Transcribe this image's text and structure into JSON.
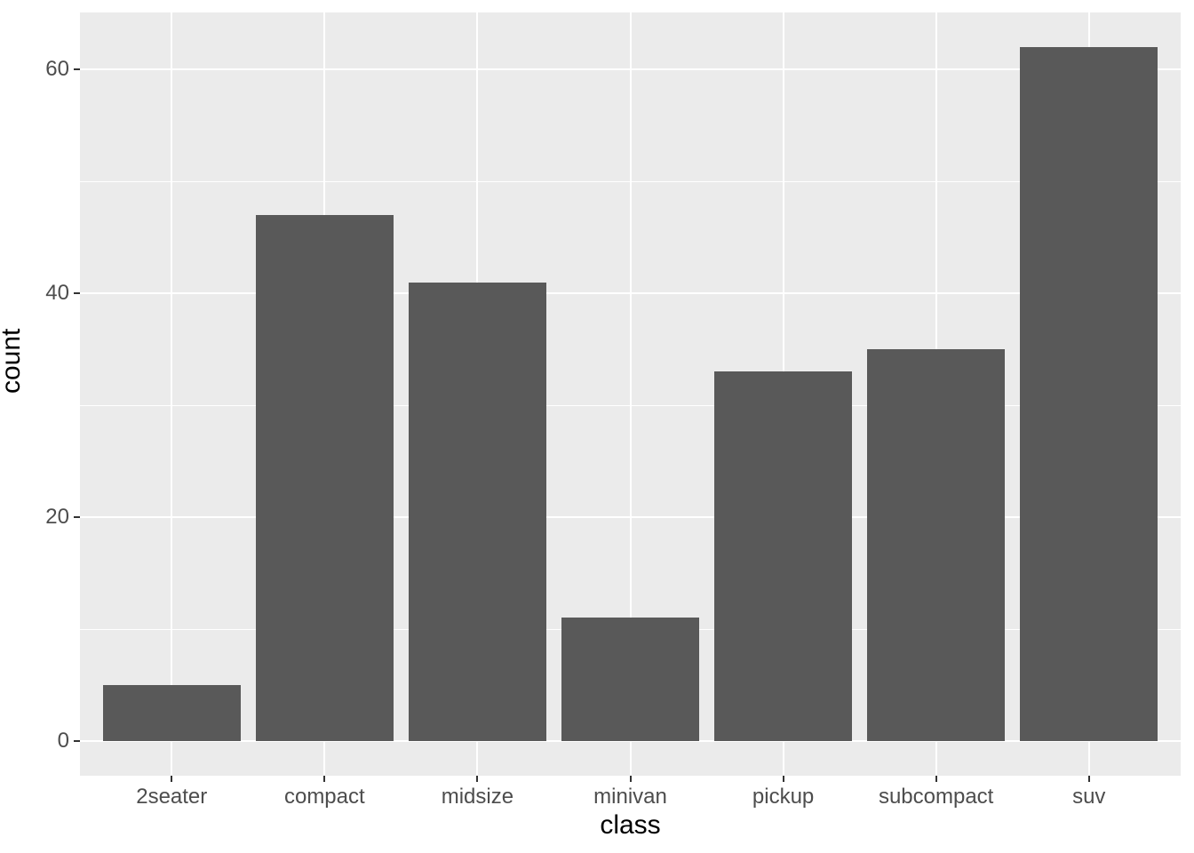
{
  "chart_data": {
    "type": "bar",
    "categories": [
      "2seater",
      "compact",
      "midsize",
      "minivan",
      "pickup",
      "subcompact",
      "suv"
    ],
    "values": [
      5,
      47,
      41,
      11,
      33,
      35,
      62
    ],
    "title": "",
    "xlabel": "class",
    "ylabel": "count",
    "ylim": [
      0,
      62
    ],
    "y_major_ticks": [
      0,
      20,
      40,
      60
    ],
    "y_minor_gridlines": [
      10,
      30,
      50
    ],
    "grid": "major and minor horizontal white gridlines, major vertical gridlines at category centers",
    "legend_position": "none",
    "bar_width_fraction": 0.9,
    "y_expansion_fraction": 0.05
  },
  "style": {
    "bar_fill": "#595959",
    "panel_background": "#EBEBEB",
    "plot_background": "#FFFFFF",
    "gridline_color": "#FFFFFF",
    "tick_label_color": "#4D4D4D",
    "axis_title_color": "#000000",
    "tick_mark_color": "#333333"
  }
}
